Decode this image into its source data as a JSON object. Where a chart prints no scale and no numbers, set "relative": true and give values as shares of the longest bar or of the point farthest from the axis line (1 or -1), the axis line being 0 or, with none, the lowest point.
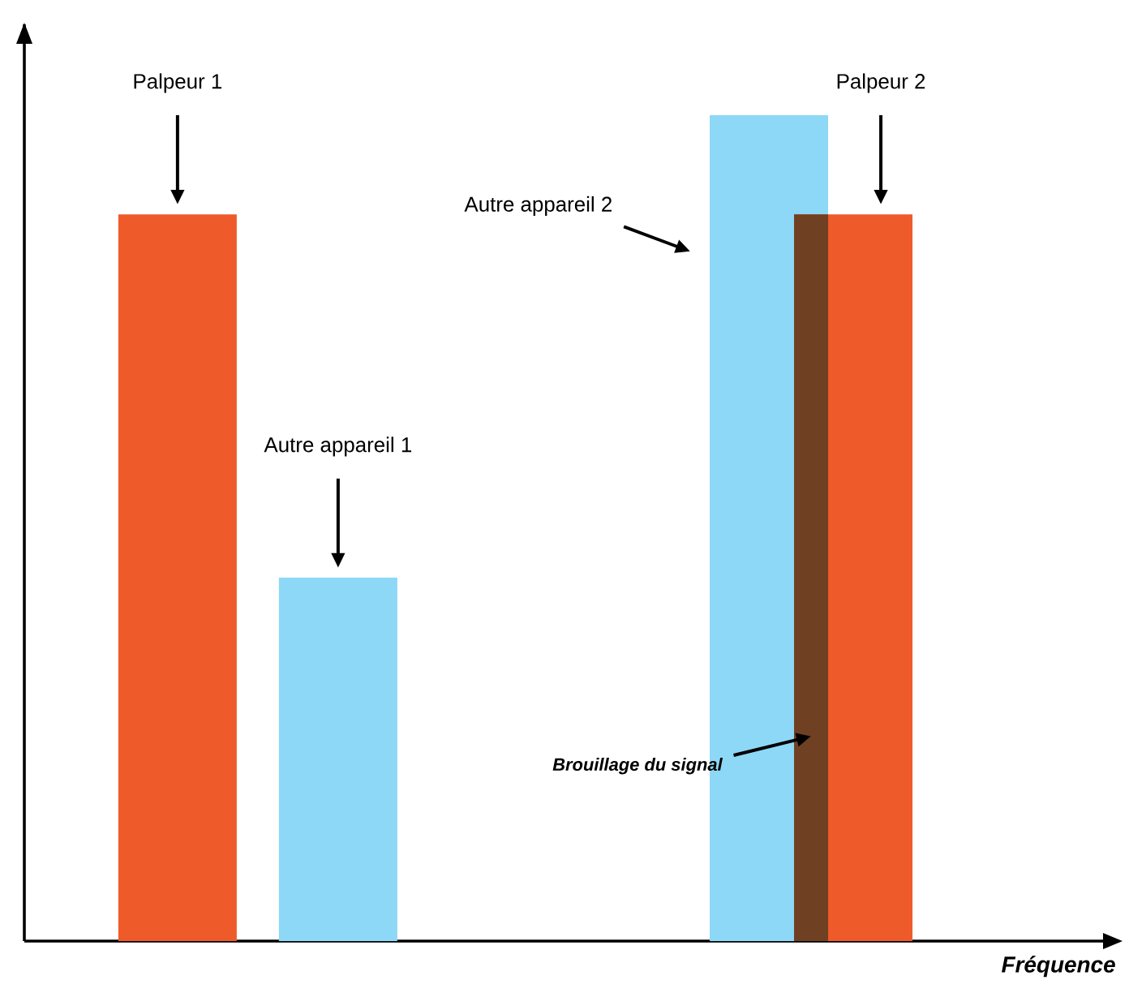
{
  "chart_data": {
    "type": "bar",
    "relative": true,
    "xlabel": "Fréquence",
    "categories": [
      null,
      null
    ],
    "series": [
      {
        "colors": [
          "#ef5a2a",
          "#8dd8f6"
        ],
        "values": [
          0.88,
          1
        ]
      },
      {
        "colors": [
          "#8dd8f6",
          "#ef5a2a"
        ],
        "values": [
          0.44,
          0.88
        ]
      }
    ],
    "annotations": [
      "Palpeur 1",
      "Autre appareil 1",
      "Autre appareil 2",
      "Palpeur 2",
      "Brouillage du signal"
    ]
  }
}
